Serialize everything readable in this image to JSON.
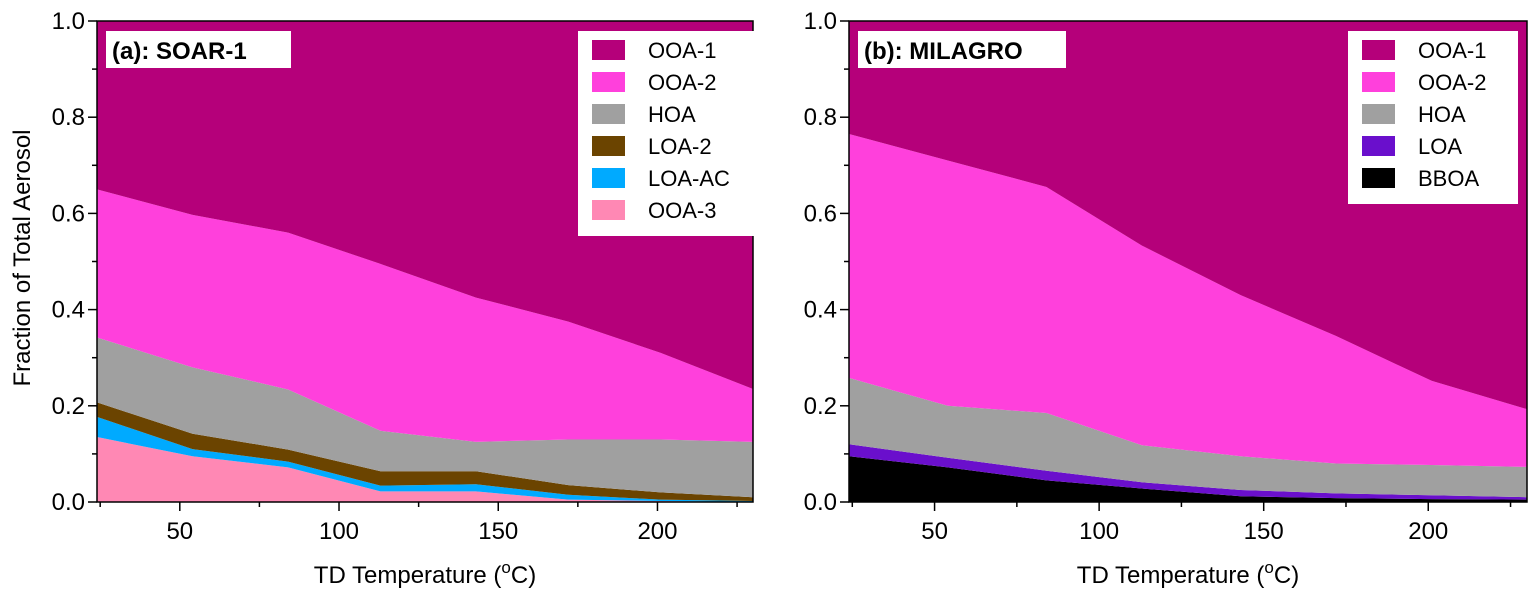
{
  "chart_data": [
    {
      "type": "area",
      "stacked": true,
      "title": "(a): SOAR-1",
      "xlabel": "TD Temperature (°C)",
      "ylabel": "Fraction of Total Aerosol",
      "xlim": [
        24,
        230
      ],
      "ylim": [
        0,
        1.0
      ],
      "x_ticks": [
        50,
        100,
        150,
        200
      ],
      "y_ticks": [
        0.0,
        0.2,
        0.4,
        0.6,
        0.8,
        1.0
      ],
      "legend_position": "top-right",
      "x": [
        24,
        54,
        84,
        113,
        143,
        172,
        201,
        230
      ],
      "series": [
        {
          "name": "OOA-3",
          "color": "#ff88b4",
          "values": [
            0.135,
            0.095,
            0.072,
            0.022,
            0.022,
            0.005,
            0.002,
            0.0
          ]
        },
        {
          "name": "LOA-AC",
          "color": "#00aaff",
          "values": [
            0.042,
            0.015,
            0.012,
            0.012,
            0.015,
            0.01,
            0.003,
            0.002
          ]
        },
        {
          "name": "LOA-2",
          "color": "#6b4400",
          "values": [
            0.03,
            0.032,
            0.025,
            0.03,
            0.027,
            0.02,
            0.015,
            0.008
          ]
        },
        {
          "name": "HOA",
          "color": "#a0a0a0",
          "values": [
            0.135,
            0.138,
            0.125,
            0.084,
            0.061,
            0.095,
            0.11,
            0.115
          ]
        },
        {
          "name": "OOA-2",
          "color": "#ff40dc",
          "values": [
            0.308,
            0.317,
            0.326,
            0.347,
            0.3,
            0.245,
            0.18,
            0.11
          ]
        },
        {
          "name": "OOA-1",
          "color": "#b5007a",
          "values": [
            0.35,
            0.403,
            0.44,
            0.505,
            0.575,
            0.625,
            0.69,
            0.765
          ]
        }
      ]
    },
    {
      "type": "area",
      "stacked": true,
      "title": "(b): MILAGRO",
      "xlabel": "TD Temperature (°C)",
      "ylabel": "",
      "xlim": [
        24,
        230
      ],
      "ylim": [
        0,
        1.0
      ],
      "x_ticks": [
        50,
        100,
        150,
        200
      ],
      "y_ticks": [
        0.0,
        0.2,
        0.4,
        0.6,
        0.8,
        1.0
      ],
      "legend_position": "top-right",
      "x": [
        24,
        54,
        84,
        113,
        143,
        172,
        201,
        230
      ],
      "series": [
        {
          "name": "BBOA",
          "color": "#000000",
          "values": [
            0.095,
            0.072,
            0.045,
            0.028,
            0.012,
            0.008,
            0.006,
            0.005
          ]
        },
        {
          "name": "LOA",
          "color": "#6a0fcc",
          "values": [
            0.025,
            0.02,
            0.02,
            0.013,
            0.013,
            0.01,
            0.008,
            0.005
          ]
        },
        {
          "name": "HOA",
          "color": "#a0a0a0",
          "values": [
            0.138,
            0.108,
            0.12,
            0.077,
            0.07,
            0.062,
            0.063,
            0.063
          ]
        },
        {
          "name": "OOA-2",
          "color": "#ff40dc",
          "values": [
            0.507,
            0.51,
            0.47,
            0.415,
            0.335,
            0.265,
            0.175,
            0.12
          ]
        },
        {
          "name": "OOA-1",
          "color": "#b5007a",
          "values": [
            0.235,
            0.29,
            0.345,
            0.467,
            0.57,
            0.655,
            0.748,
            0.807
          ]
        }
      ]
    }
  ]
}
